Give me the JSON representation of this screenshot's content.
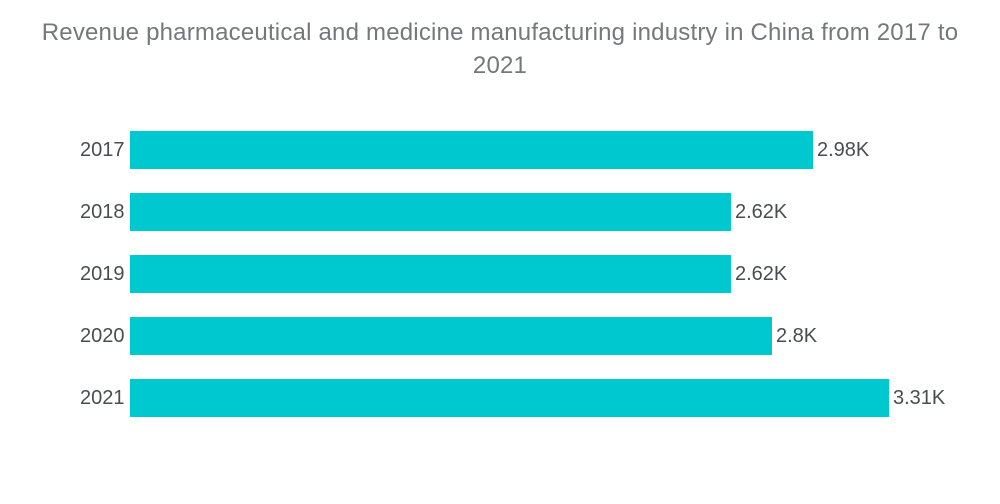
{
  "chart_data": {
    "type": "bar",
    "orientation": "horizontal",
    "title": "Revenue pharmaceutical and medicine manufacturing industry in China from 2017 to 2021",
    "categories": [
      "2017",
      "2018",
      "2019",
      "2020",
      "2021"
    ],
    "values": [
      2.98,
      2.62,
      2.62,
      2.8,
      3.31
    ],
    "value_labels": [
      "2.98K",
      "2.62K",
      "2.62K",
      "2.8K",
      "3.31K"
    ],
    "xlabel": "",
    "ylabel": "",
    "xlim": [
      0,
      3.31
    ],
    "grid": false,
    "legend": false,
    "bar_color": "#00c8cf",
    "title_color": "#75787b",
    "label_color": "#4a4d50"
  }
}
